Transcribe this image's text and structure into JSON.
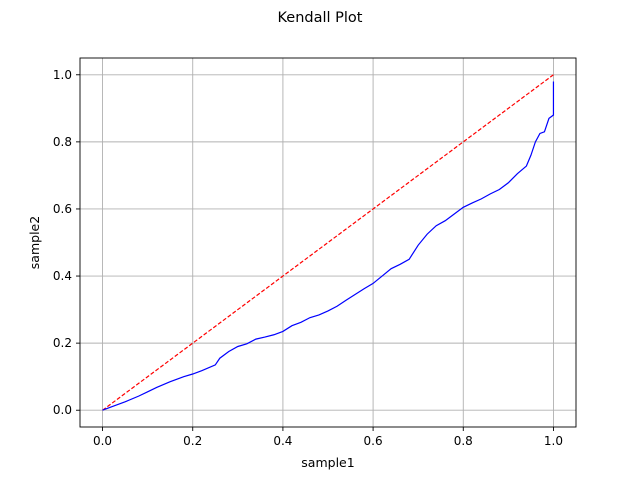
{
  "chart_data": {
    "type": "line",
    "title": "Kendall Plot",
    "xlabel": "sample1",
    "ylabel": "sample2",
    "xlim": [
      -0.05,
      1.05
    ],
    "ylim": [
      -0.05,
      1.05
    ],
    "xticks": [
      "0.0",
      "0.2",
      "0.4",
      "0.6",
      "0.8",
      "1.0"
    ],
    "yticks": [
      "0.0",
      "0.2",
      "0.4",
      "0.6",
      "0.8",
      "1.0"
    ],
    "grid": true,
    "series": [
      {
        "style": "dashed",
        "color": "#ff0000",
        "x": [
          0,
          1
        ],
        "y": [
          0,
          1
        ]
      },
      {
        "style": "solid",
        "color": "#0000ff",
        "x": [
          0,
          0.02,
          0.05,
          0.08,
          0.1,
          0.12,
          0.15,
          0.18,
          0.2,
          0.22,
          0.25,
          0.26,
          0.28,
          0.3,
          0.32,
          0.34,
          0.36,
          0.38,
          0.4,
          0.42,
          0.44,
          0.46,
          0.48,
          0.5,
          0.52,
          0.54,
          0.56,
          0.58,
          0.6,
          0.62,
          0.64,
          0.66,
          0.68,
          0.7,
          0.72,
          0.74,
          0.76,
          0.78,
          0.8,
          0.82,
          0.84,
          0.86,
          0.88,
          0.9,
          0.92,
          0.94,
          0.95,
          0.96,
          0.97,
          0.98,
          0.99,
          1.0,
          1.0
        ],
        "y": [
          0,
          0.01,
          0.025,
          0.042,
          0.055,
          0.068,
          0.085,
          0.1,
          0.108,
          0.118,
          0.135,
          0.155,
          0.175,
          0.19,
          0.198,
          0.212,
          0.218,
          0.225,
          0.235,
          0.252,
          0.262,
          0.276,
          0.284,
          0.296,
          0.31,
          0.328,
          0.345,
          0.362,
          0.378,
          0.4,
          0.422,
          0.435,
          0.45,
          0.492,
          0.525,
          0.55,
          0.565,
          0.585,
          0.605,
          0.618,
          0.63,
          0.645,
          0.658,
          0.678,
          0.705,
          0.728,
          0.76,
          0.8,
          0.825,
          0.83,
          0.87,
          0.88,
          0.98
        ]
      }
    ]
  }
}
